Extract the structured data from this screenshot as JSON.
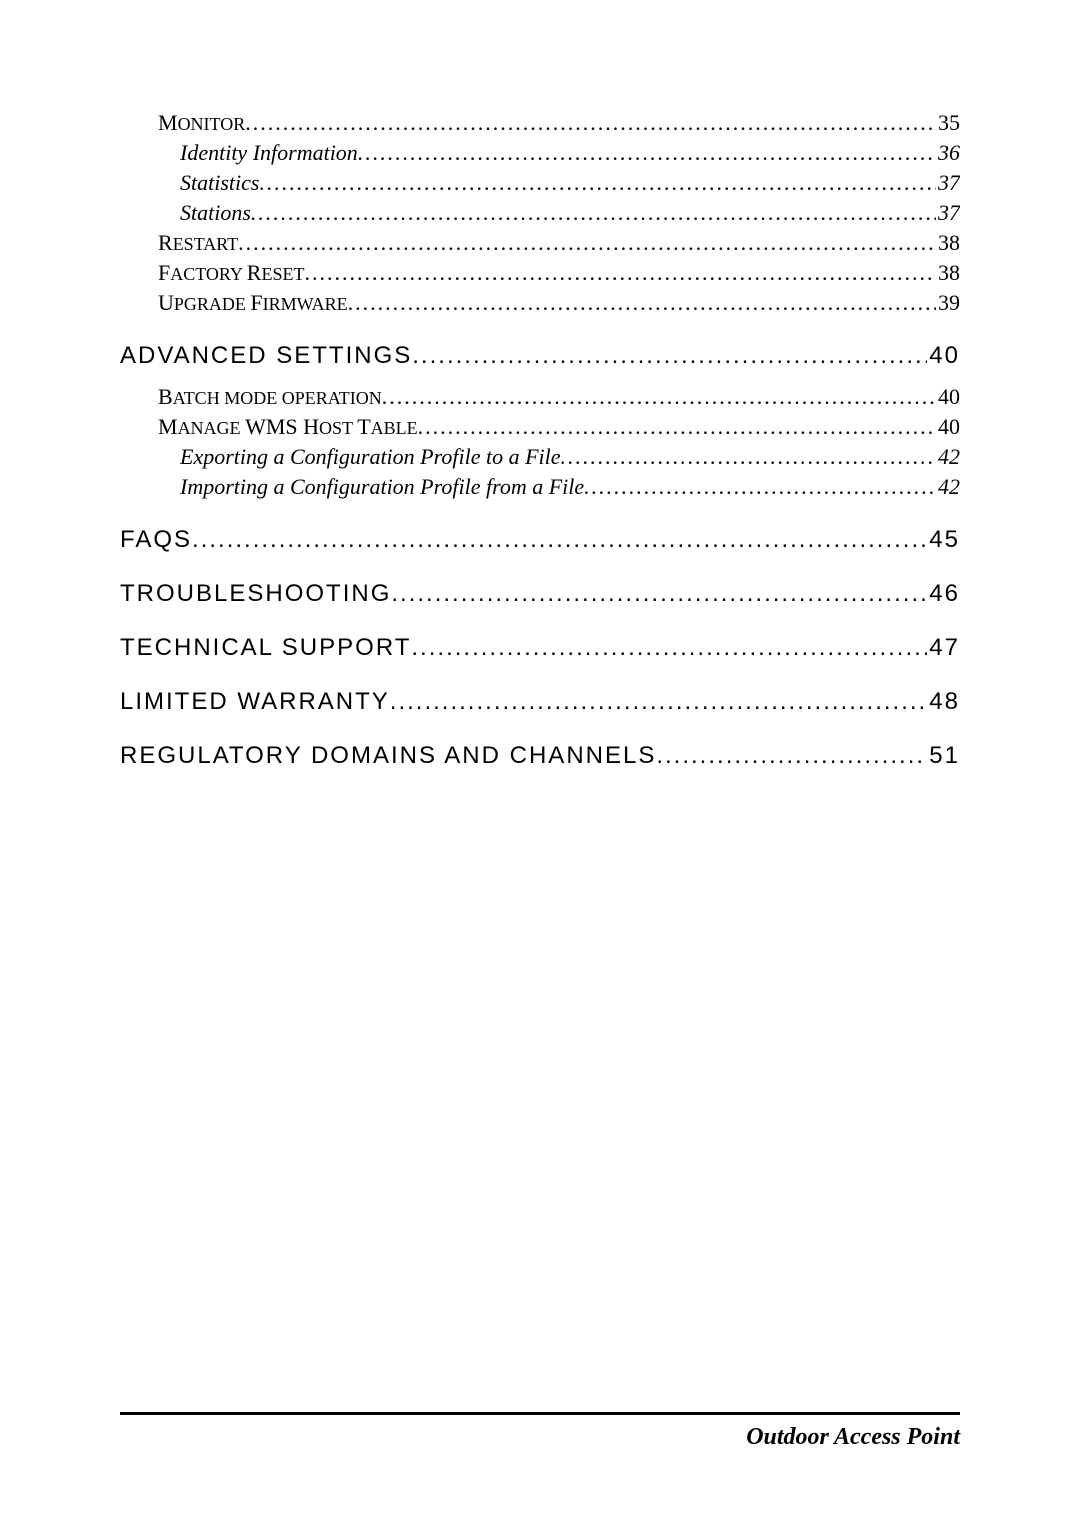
{
  "footer": {
    "text": "Outdoor Access Point"
  },
  "toc": [
    {
      "level": "smallcaps",
      "cap": "M",
      "rest": "ONITOR",
      "page": "35"
    },
    {
      "level": "italic",
      "label": "Identity Information",
      "page": "36"
    },
    {
      "level": "italic",
      "label": "Statistics",
      "page": "37"
    },
    {
      "level": "italic",
      "label": "Stations",
      "page": "37"
    },
    {
      "level": "smallcaps",
      "cap": "R",
      "rest": "ESTART",
      "page": "38"
    },
    {
      "level": "smallcaps",
      "cap": "F",
      "rest": "ACTORY ",
      "cap2": "R",
      "rest2": "ESET",
      "page": "38"
    },
    {
      "level": "smallcaps",
      "cap": "U",
      "rest": "PGRADE ",
      "cap2": "F",
      "rest2": "IRMWARE",
      "page": "39"
    },
    {
      "level": "h1",
      "label": "ADVANCED SETTINGS",
      "page": "40"
    },
    {
      "level": "smallcaps",
      "cap": "B",
      "rest": "ATCH MODE OPERATION",
      "page": "40"
    },
    {
      "level": "smallcaps",
      "cap": "M",
      "rest": "ANAGE ",
      "cap2": "WMS H",
      "rest2": "OST ",
      "cap3": "T",
      "rest3": "ABLE",
      "page": "40"
    },
    {
      "level": "italic",
      "label": "Exporting a Configuration Profile to a File",
      "page": "42"
    },
    {
      "level": "italic",
      "label": "Importing a Configuration Profile from a File",
      "page": "42"
    },
    {
      "level": "h1",
      "label": "FAQS",
      "page": "45"
    },
    {
      "level": "h1",
      "label": "TROUBLESHOOTING",
      "page": "46"
    },
    {
      "level": "h1",
      "label": "TECHNICAL SUPPORT",
      "page": "47"
    },
    {
      "level": "h1",
      "label": "LIMITED WARRANTY",
      "page": "48"
    },
    {
      "level": "h1",
      "label": "REGULATORY DOMAINS AND CHANNELS",
      "page": "51"
    }
  ]
}
